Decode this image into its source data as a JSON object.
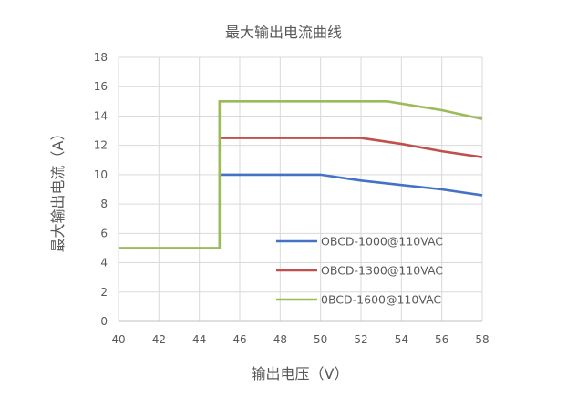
{
  "chart_data": {
    "type": "line",
    "title": "最大输出电流曲线",
    "xlabel": "输出电压（V）",
    "ylabel": "最大输出电流（A）",
    "xlim": [
      40,
      58
    ],
    "ylim": [
      0,
      18
    ],
    "xticks": [
      40,
      42,
      44,
      46,
      48,
      50,
      52,
      54,
      56,
      58
    ],
    "yticks": [
      0,
      2,
      4,
      6,
      8,
      10,
      12,
      14,
      16,
      18
    ],
    "grid": true,
    "legend_position": "inside-lower-right",
    "series": [
      {
        "name": "OBCD-1000@110VAC",
        "color": "#4472C4",
        "x": [
          45,
          50,
          52,
          54,
          56,
          58
        ],
        "y": [
          10,
          10,
          9.6,
          9.3,
          9.0,
          8.6
        ]
      },
      {
        "name": "OBCD-1300@110VAC",
        "color": "#C0504D",
        "x": [
          45,
          52,
          54,
          56,
          58
        ],
        "y": [
          12.5,
          12.5,
          12.1,
          11.6,
          11.2
        ]
      },
      {
        "name": "0BCD-1600@110VAC",
        "color": "#9BBB59",
        "x": [
          40,
          45,
          45,
          53.3,
          56,
          58
        ],
        "y": [
          5,
          5,
          15,
          15,
          14.4,
          13.8
        ]
      }
    ]
  },
  "colors": {
    "grid": "#D9D9D9",
    "text": "#595959"
  }
}
